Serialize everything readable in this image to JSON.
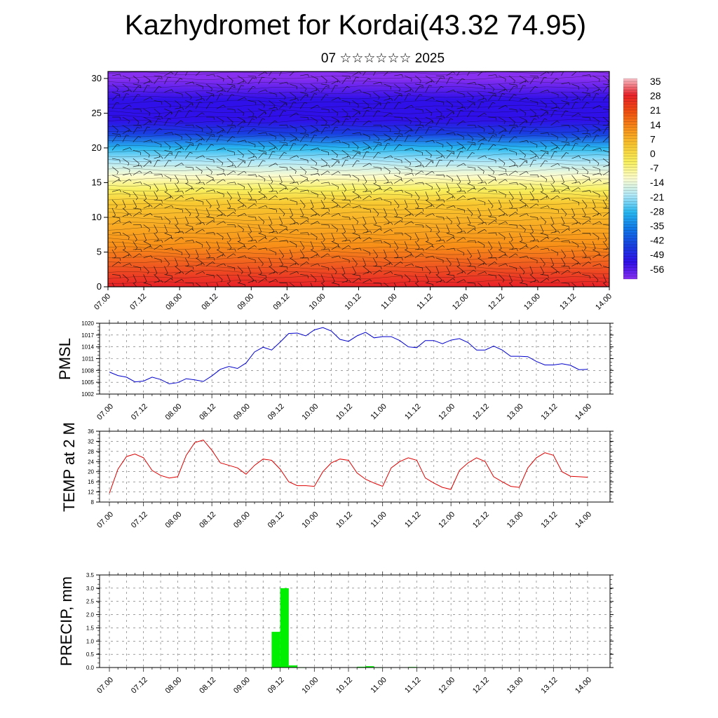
{
  "title": "Kazhydromet for Kordai(43.32 74.95)",
  "subtitle": "07 ☆☆☆☆☆☆ 2025",
  "chart_data": [
    {
      "type": "heatmap",
      "ylabel": "",
      "ylim": [
        0,
        31
      ],
      "yticks": [
        0,
        5,
        10,
        15,
        20,
        25,
        30
      ],
      "x_ticks": [
        "07.00",
        "07.12",
        "08.00",
        "08.12",
        "09.00",
        "09.12",
        "10.00",
        "10.12",
        "11.00",
        "11.12",
        "12.00",
        "12.12",
        "13.00",
        "13.12",
        "14.00"
      ],
      "colorbar": {
        "labels": [
          "35",
          "28",
          "21",
          "14",
          "7",
          "0",
          "-7",
          "-14",
          "-21",
          "-28",
          "-35",
          "-42",
          "-49",
          "-56"
        ],
        "range": [
          -63,
          38
        ],
        "stops": [
          "#f8c0c8",
          "#e82028",
          "#f05010",
          "#f89018",
          "#f8c830",
          "#f8f060",
          "#fcfcd0",
          "#b0e8f8",
          "#28b8f0",
          "#1078e8",
          "#1840e0",
          "#3010e8",
          "#8830f0"
        ]
      },
      "isotherm_levels": [
        {
          "level": 12,
          "temp": 1
        },
        {
          "level": 16,
          "temp": -10
        },
        {
          "level": 20,
          "temp": -32
        },
        {
          "level": 24,
          "temp": -55
        },
        {
          "level": 30,
          "temp": -60
        }
      ],
      "surface_temp_range": [
        20,
        30
      ]
    },
    {
      "type": "line",
      "ylabel": "PMSL",
      "ylim": [
        1002,
        1020
      ],
      "yticks": [
        1002,
        1005,
        1008,
        1011,
        1014,
        1017,
        1020
      ],
      "x_ticks": [
        "07.00",
        "07.12",
        "08.00",
        "08.12",
        "09.00",
        "09.12",
        "10.00",
        "10.12",
        "11.00",
        "11.12",
        "12.00",
        "12.12",
        "13.00",
        "13.12",
        "14.00"
      ],
      "color": "#0000cc",
      "x": [
        0,
        3,
        6,
        9,
        12,
        15,
        18,
        21,
        24,
        27,
        30,
        33,
        36,
        39,
        42,
        45,
        48,
        51,
        54,
        57,
        60,
        63,
        66,
        69,
        72,
        75,
        78,
        81,
        84,
        87,
        90,
        93,
        96,
        99,
        102,
        105,
        108,
        111,
        114,
        117,
        120,
        123,
        126,
        129,
        132,
        135,
        138,
        141,
        144,
        147,
        150,
        153,
        156,
        159,
        162,
        165,
        168
      ],
      "values": [
        1007.6,
        1006.7,
        1006.3,
        1005.1,
        1005.3,
        1006.3,
        1005.7,
        1004.6,
        1004.9,
        1005.9,
        1005.6,
        1005.2,
        1006.6,
        1008.3,
        1009.0,
        1008.5,
        1009.9,
        1012.7,
        1013.9,
        1013.2,
        1015.2,
        1017.4,
        1017.5,
        1016.8,
        1018.3,
        1018.9,
        1018.0,
        1015.9,
        1015.4,
        1016.8,
        1017.7,
        1016.3,
        1016.6,
        1016.6,
        1015.6,
        1014.0,
        1013.8,
        1015.6,
        1015.6,
        1014.8,
        1015.7,
        1016.1,
        1015.1,
        1013.2,
        1013.2,
        1014.2,
        1013.2,
        1011.6,
        1011.6,
        1011.5,
        1010.3,
        1009.4,
        1009.4,
        1009.7,
        1009.3,
        1008.2,
        1008.3
      ]
    },
    {
      "type": "line",
      "ylabel": "TEMP at 2 M",
      "ylim": [
        8,
        36
      ],
      "yticks": [
        8,
        12,
        16,
        20,
        24,
        28,
        32,
        36
      ],
      "x_ticks": [
        "07.00",
        "07.12",
        "08.00",
        "08.12",
        "09.00",
        "09.12",
        "10.00",
        "10.12",
        "11.00",
        "11.12",
        "12.00",
        "12.12",
        "13.00",
        "13.12",
        "14.00"
      ],
      "color": "#dd0000",
      "x": [
        0,
        3,
        6,
        9,
        12,
        15,
        18,
        21,
        24,
        27,
        30,
        33,
        36,
        39,
        42,
        45,
        48,
        51,
        54,
        57,
        60,
        63,
        66,
        69,
        72,
        75,
        78,
        81,
        84,
        87,
        90,
        93,
        96,
        99,
        102,
        105,
        108,
        111,
        114,
        117,
        120,
        123,
        126,
        129,
        132,
        135,
        138,
        141,
        144,
        147,
        150,
        153,
        156,
        159,
        162,
        165,
        168
      ],
      "values": [
        11.5,
        21,
        26,
        27,
        25.5,
        20.5,
        18.5,
        17.5,
        18,
        26.5,
        31.5,
        32.5,
        28.5,
        23.5,
        22.5,
        21.5,
        19,
        22.5,
        25,
        24.5,
        21,
        16,
        14.5,
        14.5,
        14.2,
        20,
        23.5,
        25,
        24.5,
        19.5,
        17,
        15.5,
        14.2,
        21.5,
        24,
        25.5,
        24.5,
        17.5,
        15.5,
        13.8,
        13,
        20.5,
        23.5,
        25.5,
        24,
        18,
        16,
        14.2,
        13.8,
        21.5,
        25.5,
        27.5,
        26.5,
        20,
        18.2,
        18,
        17.8
      ]
    },
    {
      "type": "bar",
      "ylabel": "PRECIP, mm",
      "ylim": [
        0,
        3.5
      ],
      "yticks": [
        0.0,
        0.5,
        1.0,
        1.5,
        2.0,
        2.5,
        3.0,
        3.5
      ],
      "x_ticks": [
        "07.00",
        "07.12",
        "08.00",
        "08.12",
        "09.00",
        "09.12",
        "10.00",
        "10.12",
        "11.00",
        "11.12",
        "12.00",
        "12.12",
        "13.00",
        "13.12",
        "14.00"
      ],
      "color": "#00ee00",
      "x": [
        57,
        60,
        63,
        66,
        69,
        72,
        75,
        78,
        81,
        84,
        87,
        90,
        93,
        96,
        99,
        102,
        105,
        108
      ],
      "values": [
        0,
        1.35,
        3.0,
        0.08,
        0.01,
        0,
        0,
        0,
        0,
        0,
        0,
        0.03,
        0.05,
        0.01,
        0,
        0,
        0,
        0.02
      ]
    }
  ]
}
